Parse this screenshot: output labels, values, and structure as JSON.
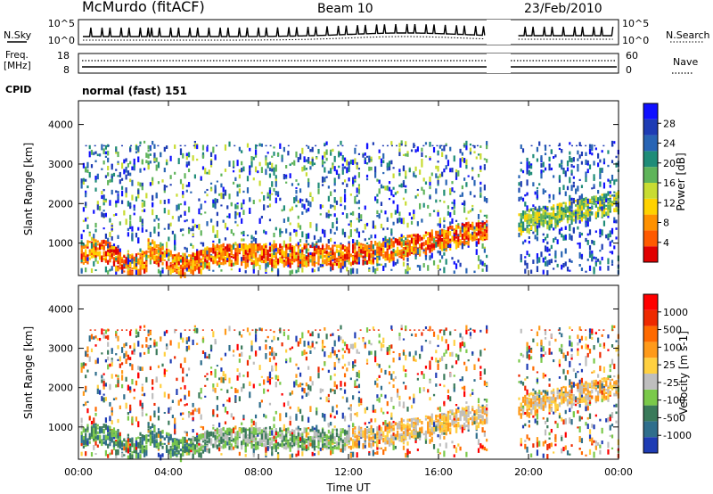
{
  "header": {
    "station": "McMurdo (fitACF)",
    "beam": "Beam 10",
    "date": "23/Feb/2010"
  },
  "noise_panel": {
    "left_label": "N.Sky",
    "right_label": "N.Search",
    "ticks_left": [
      "10^5",
      "10^0"
    ],
    "ticks_right": [
      "10^5",
      "10^0"
    ]
  },
  "freq_panel": {
    "left_label_1": "Freq.",
    "left_label_2": "[MHz]",
    "right_label": "Nave",
    "ticks_left": [
      "18",
      "8"
    ],
    "ticks_right": [
      "60",
      "0"
    ]
  },
  "cpid": {
    "label": "CPID",
    "value": "normal (fast) 151"
  },
  "chart_data": [
    {
      "type": "heatmap",
      "title": "Power",
      "ylabel": "Slant Range [km]",
      "yticks": [
        "4000",
        "3000",
        "2000",
        "1000"
      ],
      "ylim": [
        180,
        4600
      ],
      "xlim_hours": [
        0,
        24
      ],
      "xlabel": "Time UT",
      "xticks": [
        "00:00",
        "04:00",
        "08:00",
        "12:00",
        "16:00",
        "20:00",
        "00:00"
      ],
      "data_gap_hours": [
        18.1,
        19.5
      ],
      "colorbar": {
        "label": "Power [dB]",
        "tick_labels": [
          "28",
          "24",
          "20",
          "16",
          "12",
          "8",
          "4"
        ],
        "colors": [
          "#e10000",
          "#ff5a00",
          "#ff9100",
          "#ffd200",
          "#c8dc32",
          "#5fb45a",
          "#1f8c78",
          "#2864b4",
          "#1e3cb4",
          "#1010ff"
        ]
      }
    },
    {
      "type": "heatmap",
      "title": "Velocity",
      "ylabel": "Slant Range [km]",
      "yticks": [
        "4000",
        "3000",
        "2000",
        "1000"
      ],
      "ylim": [
        180,
        4600
      ],
      "xlim_hours": [
        0,
        24
      ],
      "xlabel": "Time UT",
      "xticks": [
        "00:00",
        "04:00",
        "08:00",
        "12:00",
        "16:00",
        "20:00",
        "00:00"
      ],
      "data_gap_hours": [
        18.1,
        19.5
      ],
      "colorbar": {
        "label": "Velocity [m s-1]",
        "tick_labels": [
          "1000",
          "500",
          "100",
          "25",
          "-25",
          "-100",
          "-500",
          "-1000"
        ],
        "colors": [
          "#1e3cb4",
          "#2f6e8c",
          "#3a7a5a",
          "#7ac94a",
          "#bebebe",
          "#ffd040",
          "#ff9a1a",
          "#ff6a00",
          "#ee2a00",
          "#ff0000"
        ]
      }
    }
  ]
}
